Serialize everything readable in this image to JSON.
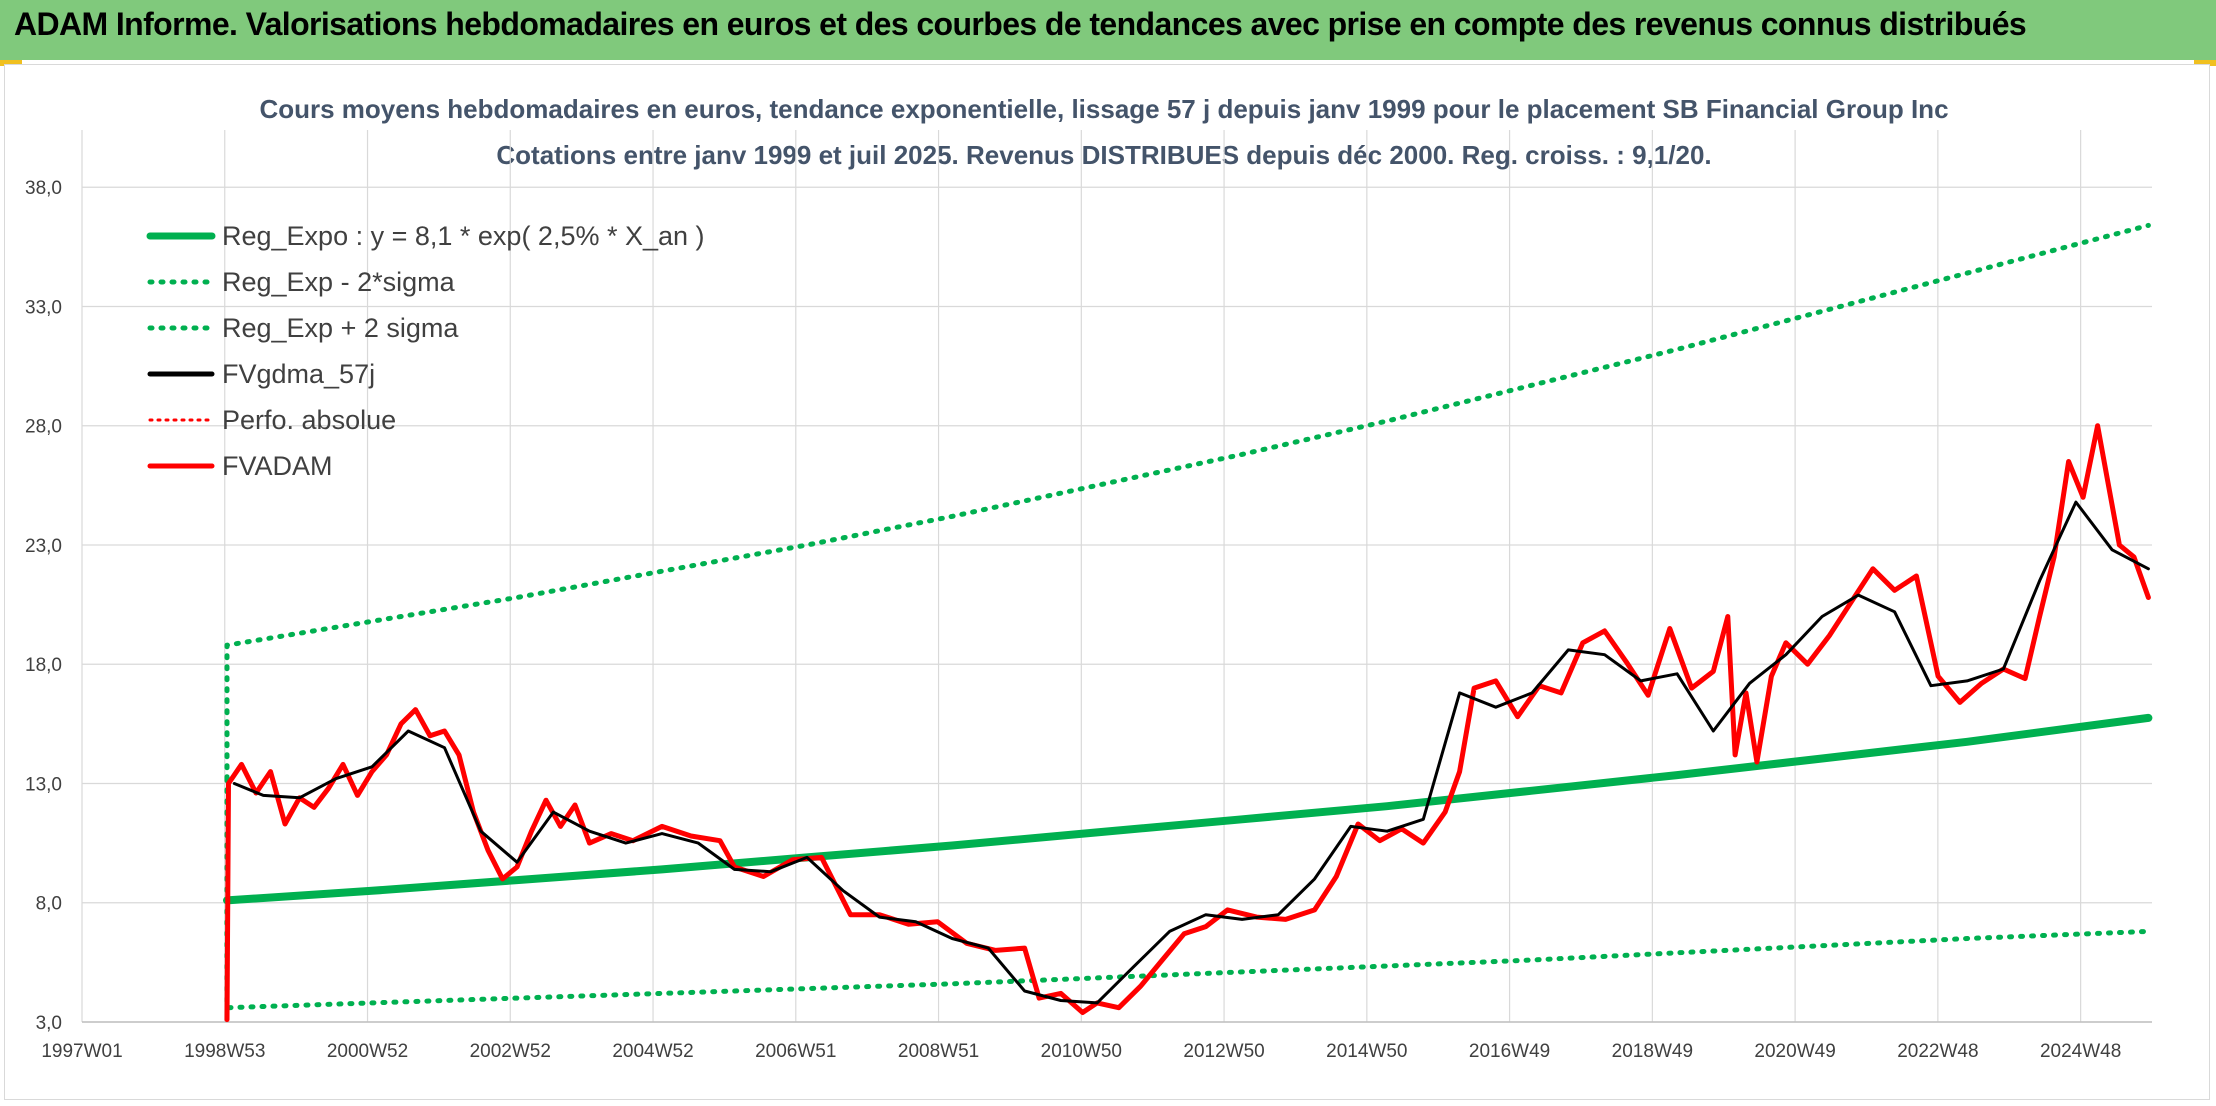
{
  "banner": {
    "title": "ADAM Informe. Valorisations hebdomadaires en euros et des courbes de tendances avec prise en compte des revenus connus distribués"
  },
  "colors": {
    "banner_bg": "#80c97c",
    "reg_expo": "#00b050",
    "sigma": "#00b050",
    "fvgdma": "#000000",
    "perfo": "#ff0000",
    "fvadam": "#ff0000",
    "grid": "#d9d9d9"
  },
  "chart_data": {
    "type": "line",
    "title": "Cours moyens hebdomadaires en euros, tendance exponentielle, lissage 57 j depuis janv 1999 pour le placement SB Financial Group Inc",
    "subtitle": "Cotations entre janv 1999 et juil 2025. Revenus DISTRIBUES depuis déc 2000. Reg. croiss. : 9,1/20.",
    "xlabel": "",
    "ylabel": "",
    "ylim": [
      3,
      40.4
    ],
    "yticks": [
      "3,0",
      "8,0",
      "13,0",
      "18,0",
      "23,0",
      "28,0",
      "33,0",
      "38,0"
    ],
    "xticks": [
      "1997W01",
      "1998W53",
      "2000W52",
      "2002W52",
      "2004W52",
      "2006W51",
      "2008W51",
      "2010W50",
      "2012W50",
      "2014W50",
      "2016W49",
      "2018W49",
      "2020W49",
      "2022W48",
      "2024W48"
    ],
    "grid": true,
    "legend_position": "top-left",
    "series": [
      {
        "name": "Reg_Expo : y = 8,1 * exp( 2,5% *  X_an )",
        "style": "solid-thick",
        "x": [
          1999.0,
          2001.0,
          2003.0,
          2005.0,
          2007.0,
          2009.0,
          2011.0,
          2013.0,
          2015.0,
          2017.0,
          2019.0,
          2021.0,
          2023.0,
          2025.5
        ],
        "y": [
          8.1,
          8.5,
          8.95,
          9.4,
          9.9,
          10.4,
          10.95,
          11.5,
          12.05,
          12.7,
          13.35,
          14.05,
          14.75,
          15.75
        ]
      },
      {
        "name": "Reg_Exp - 2*sigma",
        "style": "dotted",
        "x": [
          1999.0,
          1999.0,
          2001.0,
          2003.0,
          2005.0,
          2007.0,
          2009.0,
          2011.0,
          2013.0,
          2015.0,
          2017.0,
          2019.0,
          2021.0,
          2023.0,
          2025.5
        ],
        "y": [
          13.2,
          3.6,
          3.8,
          4.0,
          4.2,
          4.4,
          4.6,
          4.85,
          5.1,
          5.35,
          5.6,
          5.9,
          6.2,
          6.5,
          6.8
        ]
      },
      {
        "name": "Reg_Exp + 2 sigma",
        "style": "dotted",
        "x": [
          1999.0,
          1999.0,
          2001.0,
          2003.0,
          2005.0,
          2007.0,
          2009.0,
          2011.0,
          2013.0,
          2015.0,
          2017.0,
          2019.0,
          2021.0,
          2023.0,
          2025.5
        ],
        "y": [
          13.2,
          18.8,
          19.8,
          20.8,
          21.9,
          23.0,
          24.2,
          25.5,
          26.8,
          28.2,
          29.7,
          31.2,
          32.8,
          34.4,
          36.4
        ]
      },
      {
        "name": "FVgdma_57j",
        "style": "solid-thin",
        "x": [
          1999.1,
          1999.5,
          2000.0,
          2000.5,
          2001.0,
          2001.5,
          2002.0,
          2002.5,
          2003.0,
          2003.5,
          2004.0,
          2004.5,
          2005.0,
          2005.5,
          2006.0,
          2006.5,
          2007.0,
          2007.5,
          2008.0,
          2008.5,
          2009.0,
          2009.5,
          2010.0,
          2010.5,
          2011.0,
          2011.5,
          2012.0,
          2012.5,
          2013.0,
          2013.5,
          2014.0,
          2014.5,
          2015.0,
          2015.5,
          2016.0,
          2016.5,
          2017.0,
          2017.5,
          2018.0,
          2018.5,
          2019.0,
          2019.5,
          2020.0,
          2020.5,
          2021.0,
          2021.5,
          2022.0,
          2022.5,
          2023.0,
          2023.5,
          2024.0,
          2024.5,
          2025.0,
          2025.5
        ],
        "y": [
          13.0,
          12.5,
          12.4,
          13.2,
          13.7,
          15.2,
          14.5,
          11.0,
          9.7,
          11.8,
          11.0,
          10.5,
          10.9,
          10.5,
          9.4,
          9.3,
          9.9,
          8.5,
          7.4,
          7.2,
          6.5,
          6.1,
          4.3,
          3.9,
          3.8,
          5.3,
          6.8,
          7.5,
          7.3,
          7.5,
          9.0,
          11.2,
          11.0,
          11.5,
          16.8,
          16.2,
          16.8,
          18.6,
          18.4,
          17.3,
          17.6,
          15.2,
          17.2,
          18.4,
          20.0,
          20.9,
          20.2,
          17.1,
          17.3,
          17.8,
          21.5,
          24.8,
          22.8,
          22.0
        ]
      },
      {
        "name": "Perfo. absolue",
        "style": "dotted-red",
        "x": [],
        "y": []
      },
      {
        "name": "FVADAM",
        "style": "solid-thick-red",
        "x": [
          1999.0,
          1999.02,
          1999.2,
          1999.4,
          1999.6,
          1999.8,
          2000.0,
          2000.2,
          2000.4,
          2000.6,
          2000.8,
          2001.0,
          2001.2,
          2001.4,
          2001.6,
          2001.8,
          2002.0,
          2002.2,
          2002.4,
          2002.6,
          2002.8,
          2003.0,
          2003.2,
          2003.4,
          2003.6,
          2003.8,
          2004.0,
          2004.3,
          2004.6,
          2005.0,
          2005.4,
          2005.8,
          2006.0,
          2006.4,
          2006.8,
          2007.2,
          2007.6,
          2008.0,
          2008.4,
          2008.8,
          2009.2,
          2009.6,
          2010.0,
          2010.2,
          2010.5,
          2010.8,
          2011.0,
          2011.3,
          2011.6,
          2011.9,
          2012.2,
          2012.5,
          2012.8,
          2013.2,
          2013.6,
          2014.0,
          2014.3,
          2014.6,
          2014.9,
          2015.2,
          2015.5,
          2015.8,
          2016.0,
          2016.2,
          2016.5,
          2016.8,
          2017.1,
          2017.4,
          2017.7,
          2018.0,
          2018.3,
          2018.6,
          2018.9,
          2019.2,
          2019.5,
          2019.7,
          2019.8,
          2019.95,
          2020.1,
          2020.3,
          2020.5,
          2020.8,
          2021.1,
          2021.4,
          2021.7,
          2022.0,
          2022.3,
          2022.6,
          2022.9,
          2023.2,
          2023.5,
          2023.8,
          2024.0,
          2024.2,
          2024.4,
          2024.6,
          2024.8,
          2024.95,
          2025.1,
          2025.3,
          2025.5
        ],
        "y": [
          3.1,
          13.0,
          13.8,
          12.6,
          13.5,
          11.3,
          12.4,
          12.0,
          12.8,
          13.8,
          12.5,
          13.5,
          14.2,
          15.5,
          16.1,
          15.0,
          15.2,
          14.2,
          11.8,
          10.2,
          9.0,
          9.5,
          11.0,
          12.3,
          11.2,
          12.1,
          10.5,
          10.9,
          10.6,
          11.2,
          10.8,
          10.6,
          9.5,
          9.1,
          9.8,
          9.9,
          7.5,
          7.5,
          7.1,
          7.2,
          6.3,
          6.0,
          6.1,
          4.0,
          4.2,
          3.4,
          3.8,
          3.6,
          4.5,
          5.6,
          6.7,
          7.0,
          7.7,
          7.4,
          7.3,
          7.7,
          9.1,
          11.3,
          10.6,
          11.1,
          10.5,
          11.8,
          13.5,
          17.0,
          17.3,
          15.8,
          17.1,
          16.8,
          18.9,
          19.4,
          18.1,
          16.7,
          19.5,
          17.0,
          17.7,
          20.0,
          14.2,
          16.8,
          13.9,
          17.5,
          18.9,
          18.0,
          19.2,
          20.6,
          22.0,
          21.1,
          21.7,
          17.5,
          16.4,
          17.2,
          17.8,
          17.4,
          20.0,
          22.5,
          26.5,
          25.0,
          28.0,
          25.5,
          23.0,
          22.5,
          20.8
        ]
      }
    ]
  }
}
